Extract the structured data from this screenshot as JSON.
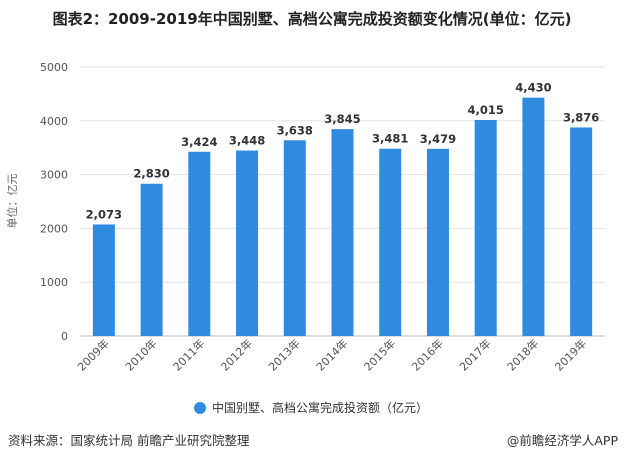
{
  "title": "图表2：2009-2019年中国别墅、高档公寓完成投资额变化情况(单位：亿元)",
  "source": "资料来源：国家统计局 前瞻产业研究院整理",
  "credit": "@前瞻经济学人APP",
  "watermark": "前瞻产业研究院",
  "chart_data": {
    "type": "bar",
    "categories": [
      "2009年",
      "2010年",
      "2011年",
      "2012年",
      "2013年",
      "2014年",
      "2015年",
      "2016年",
      "2017年",
      "2018年",
      "2019年"
    ],
    "series": [
      {
        "name": "中国别墅、高档公寓完成投资额（亿元）",
        "values": [
          2073,
          2830,
          3424,
          3448,
          3638,
          3845,
          3481,
          3479,
          4015,
          4430,
          3876
        ],
        "labels": [
          "2,073",
          "2,830",
          "3,424",
          "3,448",
          "3,638",
          "3,845",
          "3,481",
          "3,479",
          "4,015",
          "4,430",
          "3,876"
        ]
      }
    ],
    "ylabel": "单位：亿元",
    "ylim": [
      0,
      5000
    ],
    "yticks": [
      0,
      1000,
      2000,
      3000,
      4000,
      5000
    ],
    "grid": true,
    "legend": "bottom",
    "colors": {
      "bar": "#2e8be0",
      "grid": "#e3e3e3"
    }
  }
}
